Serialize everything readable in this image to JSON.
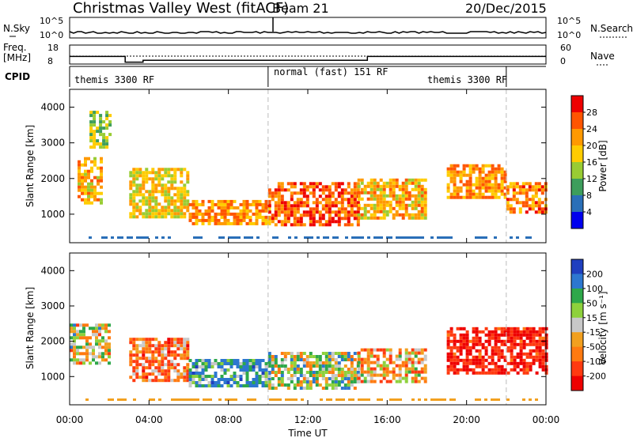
{
  "header": {
    "title": "Christmas Valley West (fitACF)",
    "beam": "Beam 21",
    "date": "20/Dec/2015"
  },
  "noise_panel": {
    "left_label": "N.Sky",
    "left_ticks": [
      "10^5",
      "10^0"
    ],
    "right_ticks": [
      "10^5",
      "10^0"
    ],
    "right_label": "N.Search"
  },
  "freq_panel": {
    "left_label_1": "Freq.",
    "left_label_2": "[MHz]",
    "left_ticks": [
      "18",
      "8"
    ],
    "right_ticks": [
      "60",
      "0"
    ],
    "right_label": "Nave"
  },
  "cpid": {
    "label": "CPID",
    "segments": [
      "themis 3300 RF",
      "normal (fast) 151 RF",
      "themis 3300 RF"
    ]
  },
  "power_panel": {
    "ylabel": "Slant Range [km]",
    "yticks": [
      "4000",
      "3000",
      "2000",
      "1000"
    ],
    "colorbar_title": "Power [dB]",
    "colorbar_ticks": [
      "28",
      "24",
      "20",
      "16",
      "12",
      "8",
      "4"
    ],
    "colorbar_colors": [
      "#ee0000",
      "#ff5500",
      "#ff9900",
      "#ffcc00",
      "#99cc33",
      "#3d9e5c",
      "#2a6fb8",
      "#0000ee"
    ]
  },
  "velocity_panel": {
    "ylabel": "Slant Range [km]",
    "yticks": [
      "4000",
      "3000",
      "2000",
      "1000"
    ],
    "colorbar_title": "Velocity [m s⁻¹]",
    "colorbar_ticks": [
      "200",
      "100",
      "50",
      "15",
      "-15",
      "-50",
      "-100",
      "-200"
    ],
    "colorbar_colors": [
      "#1f3fbf",
      "#2d77d0",
      "#2ea84a",
      "#8ed13c",
      "#c8c8c8",
      "#f2a01f",
      "#ff7a10",
      "#ff3a10",
      "#ee0000"
    ]
  },
  "xaxis": {
    "ticks": [
      "00:00",
      "04:00",
      "08:00",
      "12:00",
      "16:00",
      "20:00",
      "00:00"
    ],
    "label": "Time UT"
  },
  "chart_data": {
    "type": "heatmap",
    "title": "Christmas Valley West (fitACF)",
    "xlabel": "Time UT",
    "ylabel": "Slant Range [km]",
    "xlim_hours": [
      0,
      24
    ],
    "ylim_km": [
      200,
      4500
    ],
    "grid": false,
    "frequency_segments": [
      {
        "start_hour": 0,
        "end_hour": 2.8,
        "freq_mhz": 12
      },
      {
        "start_hour": 2.8,
        "end_hour": 3.7,
        "freq_mhz": 9
      },
      {
        "start_hour": 3.7,
        "end_hour": 15.0,
        "freq_mhz": 10
      },
      {
        "start_hour": 15.0,
        "end_hour": 24,
        "freq_mhz": 12
      }
    ],
    "cpid_boundaries_hours": [
      10.0,
      22.0
    ],
    "power_echo_regions": [
      {
        "t": [
          0.4,
          1.6
        ],
        "r": [
          1300,
          2600
        ],
        "level_db": 20
      },
      {
        "t": [
          1.0,
          2.0
        ],
        "r": [
          2900,
          3900
        ],
        "level_db": 14
      },
      {
        "t": [
          3.0,
          6.0
        ],
        "r": [
          900,
          2300
        ],
        "level_db": 18
      },
      {
        "t": [
          6.0,
          10.0
        ],
        "r": [
          700,
          1400
        ],
        "level_db": 22
      },
      {
        "t": [
          10.0,
          14.5
        ],
        "r": [
          700,
          1900
        ],
        "level_db": 26
      },
      {
        "t": [
          14.5,
          18.0
        ],
        "r": [
          900,
          2000
        ],
        "level_db": 20
      },
      {
        "t": [
          19.0,
          22.0
        ],
        "r": [
          1500,
          2400
        ],
        "level_db": 22
      },
      {
        "t": [
          22.0,
          24.0
        ],
        "r": [
          1100,
          1900
        ],
        "level_db": 24
      }
    ],
    "velocity_echo_regions": [
      {
        "t": [
          0.0,
          2.0
        ],
        "r": [
          1400,
          2500
        ],
        "v_ms": 0
      },
      {
        "t": [
          3.0,
          6.0
        ],
        "r": [
          900,
          2100
        ],
        "v_ms": -100
      },
      {
        "t": [
          6.0,
          10.0
        ],
        "r": [
          700,
          1500
        ],
        "v_ms": 100
      },
      {
        "t": [
          10.0,
          14.5
        ],
        "r": [
          700,
          1700
        ],
        "v_ms": 30
      },
      {
        "t": [
          14.5,
          18.0
        ],
        "r": [
          900,
          1800
        ],
        "v_ms": -50
      },
      {
        "t": [
          19.0,
          24.0
        ],
        "r": [
          1100,
          2400
        ],
        "v_ms": -200
      }
    ]
  }
}
